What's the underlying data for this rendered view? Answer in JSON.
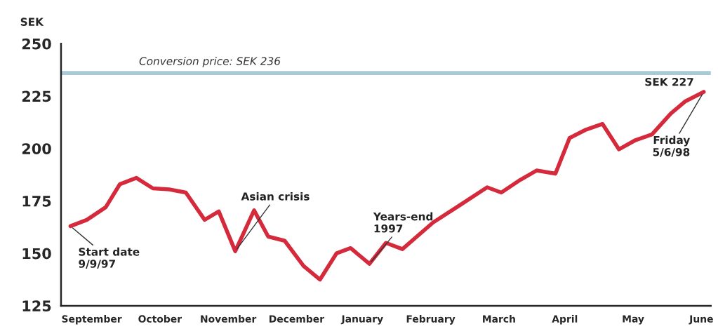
{
  "chart_data": {
    "type": "line",
    "ylabel": "SEK",
    "x": [
      "1997-09-09",
      "1997-09-16",
      "1997-09-24",
      "1997-09-30",
      "1997-10-07",
      "1997-10-14",
      "1997-10-21",
      "1997-10-28",
      "1997-11-05",
      "1997-11-11",
      "1997-11-18",
      "1997-11-26",
      "1997-12-02",
      "1997-12-09",
      "1997-12-17",
      "1997-12-24",
      "1997-12-31",
      "1998-01-06",
      "1998-01-14",
      "1998-01-21",
      "1998-01-28",
      "1998-02-10",
      "1998-02-21",
      "1998-03-05",
      "1998-03-11",
      "1998-03-19",
      "1998-03-26",
      "1998-04-03",
      "1998-04-09",
      "1998-04-16",
      "1998-04-23",
      "1998-04-30",
      "1998-05-07",
      "1998-05-14",
      "1998-05-22",
      "1998-05-28",
      "1998-06-05"
    ],
    "series": [
      {
        "color": "#d42a3c",
        "values": [
          163,
          166,
          172,
          183,
          186,
          181,
          180.5,
          179,
          166,
          170,
          151,
          170.5,
          158,
          156,
          144,
          137.5,
          150,
          152.5,
          145,
          155,
          152,
          164.7,
          172.7,
          181.5,
          179,
          185,
          189.5,
          188,
          205,
          209,
          211.7,
          199.6,
          204,
          206.7,
          216.7,
          222.4,
          227
        ]
      }
    ],
    "xlim": [
      "1997-09-05",
      "1998-06-08"
    ],
    "xticks": [
      {
        "value": "1997-09-18",
        "label": "September"
      },
      {
        "value": "1997-10-17",
        "label": "October"
      },
      {
        "value": "1997-11-15",
        "label": "November"
      },
      {
        "value": "1997-12-14",
        "label": "December"
      },
      {
        "value": "1998-01-11",
        "label": "January"
      },
      {
        "value": "1998-02-09",
        "label": "February"
      },
      {
        "value": "1998-03-10",
        "label": "March"
      },
      {
        "value": "1998-04-07",
        "label": "April"
      },
      {
        "value": "1998-05-06",
        "label": "May"
      },
      {
        "value": "1998-06-04",
        "label": "June"
      }
    ],
    "ylim": [
      125,
      250
    ],
    "yticks": [
      125,
      150,
      175,
      200,
      225,
      250
    ],
    "ref_lines": [
      {
        "axis": "y",
        "value": 236,
        "label": "Conversion price: SEK 236",
        "color": "#a9c8d8"
      }
    ],
    "annotations": [
      {
        "text": "Start date\n9/9/97",
        "x": "1997-09-09",
        "y": 163
      },
      {
        "text": "Asian crisis",
        "x": "1997-11-18",
        "y": 151
      },
      {
        "text": "Years-end\n1997",
        "x": "1998-01-14",
        "y": 145
      },
      {
        "text": "SEK 227",
        "x": "1998-06-05",
        "y": 227
      },
      {
        "text": "Friday\n5/6/98",
        "x": "1998-06-05",
        "y": 227
      }
    ],
    "grid": false,
    "legend": false,
    "marker": "none",
    "line_style": "solid"
  }
}
